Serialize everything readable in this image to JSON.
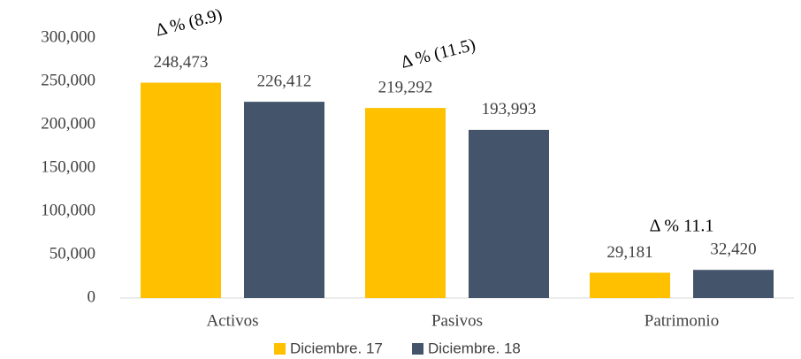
{
  "chart_data": {
    "type": "bar",
    "categories": [
      "Activos",
      "Pasivos",
      "Patrimonio"
    ],
    "series": [
      {
        "name": "Diciembre. 17",
        "color": "#FFC000",
        "values": [
          248473,
          219292,
          29181
        ],
        "value_labels": [
          "248,473",
          "219,292",
          "29,181"
        ]
      },
      {
        "name": "Diciembre. 18",
        "color": "#44546A",
        "values": [
          226412,
          193993,
          32420
        ],
        "value_labels": [
          "226,412",
          "193,993",
          "32,420"
        ]
      }
    ],
    "ylim": [
      0,
      300000
    ],
    "yticks": [
      0,
      {
        "value": 50000,
        "label": "50,000"
      },
      {
        "value": 100000,
        "label": "100,000"
      },
      {
        "value": 150000,
        "label": "150,000"
      },
      {
        "value": 200000,
        "label": "200,000"
      },
      {
        "value": 250000,
        "label": "250,000"
      },
      {
        "value": 300000,
        "label": "300,000"
      }
    ],
    "annotations": [
      "Δ % (8.9)",
      "Δ % (11.5)",
      "Δ % 11.1"
    ],
    "legend": "bottom"
  }
}
